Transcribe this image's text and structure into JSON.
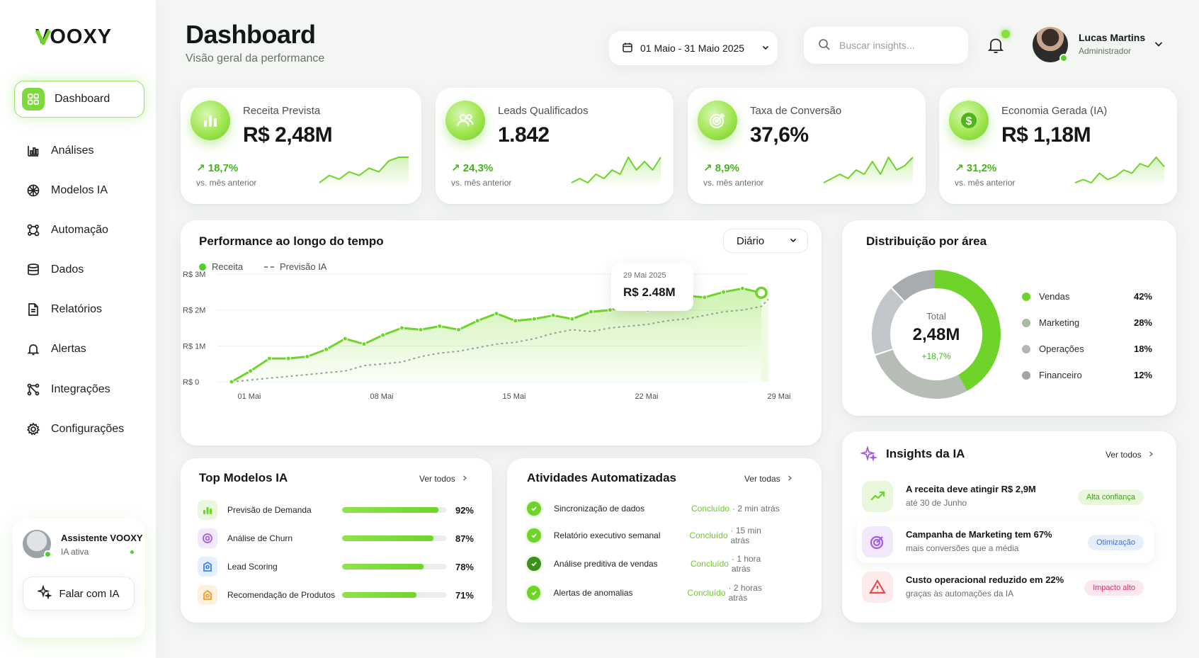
{
  "brand": {
    "logo": "VOOXY",
    "accent": "#6fd42a"
  },
  "sidebar": {
    "items": [
      {
        "label": "Dashboard",
        "icon": "grid-icon",
        "active": true
      },
      {
        "label": "Análises",
        "icon": "bar-chart-icon"
      },
      {
        "label": "Modelos IA",
        "icon": "ai-chip-icon"
      },
      {
        "label": "Automação",
        "icon": "automation-icon"
      },
      {
        "label": "Dados",
        "icon": "database-icon"
      },
      {
        "label": "Relatórios",
        "icon": "report-icon"
      },
      {
        "label": "Alertas",
        "icon": "bell-icon"
      },
      {
        "label": "Integrações",
        "icon": "integration-icon"
      },
      {
        "label": "Configurações",
        "icon": "gear-icon"
      }
    ],
    "assistant": {
      "name": "Assistente VOOXY",
      "status": "IA ativa",
      "button": "Falar com IA"
    }
  },
  "header": {
    "title": "Dashboard",
    "subtitle": "Visão geral da performance",
    "date_range": "01 Maio - 31 Maio 2025",
    "search_placeholder": "Buscar insights...",
    "user": {
      "name": "Lucas Martins",
      "role": "Administrador"
    }
  },
  "kpis": [
    {
      "label": "Receita Prevista",
      "value": "R$ 2,48M",
      "delta": "↗ 18,7%",
      "compare": "vs. mês anterior",
      "icon": "bar-chart-icon",
      "spark": [
        3,
        5,
        4,
        6,
        5,
        7,
        6,
        9,
        10,
        10
      ]
    },
    {
      "label": "Leads Qualificados",
      "value": "1.842",
      "delta": "↗ 24,3%",
      "compare": "vs. mês anterior",
      "icon": "users-icon",
      "spark": [
        3,
        4,
        3,
        5,
        4,
        6,
        5,
        9,
        6,
        8,
        6,
        9
      ]
    },
    {
      "label": "Taxa de Conversão",
      "value": "37,6%",
      "delta": "↗ 8,9%",
      "compare": "vs. mês anterior",
      "icon": "target-icon",
      "spark": [
        3,
        4,
        5,
        4,
        6,
        5,
        8,
        5,
        9,
        6,
        7,
        9
      ]
    },
    {
      "label": "Economia Gerada (IA)",
      "value": "R$ 1,18M",
      "delta": "↗ 31,2%",
      "compare": "vs. mês anterior",
      "icon": "dollar-icon",
      "spark": [
        3,
        4,
        3,
        6,
        4,
        5,
        7,
        6,
        9,
        8,
        11,
        8
      ]
    }
  ],
  "performance": {
    "title": "Performance ao longo do tempo",
    "period": "Diário",
    "legend": [
      "Receita",
      "Previsão IA"
    ],
    "tooltip": {
      "date": "29 Mai 2025",
      "value": "R$ 2.48M"
    }
  },
  "chart_data": {
    "type": "line",
    "x": [
      1,
      2,
      3,
      4,
      5,
      6,
      7,
      8,
      9,
      10,
      11,
      12,
      13,
      14,
      15,
      16,
      17,
      18,
      19,
      20,
      21,
      22,
      23,
      24,
      25,
      26,
      27,
      28,
      29
    ],
    "xticks": [
      "01 Mai",
      "08 Mai",
      "15 Mai",
      "22 Mai",
      "29 Mai"
    ],
    "yticks": [
      "R$ 0",
      "R$ 1M",
      "R$ 2M",
      "R$ 3M"
    ],
    "ylim": [
      0,
      3
    ],
    "series": [
      {
        "name": "Receita",
        "color": "#6fd42a",
        "values": [
          0.0,
          0.3,
          0.65,
          0.65,
          0.7,
          0.9,
          1.2,
          1.05,
          1.3,
          1.5,
          1.45,
          1.55,
          1.45,
          1.7,
          1.9,
          1.7,
          1.75,
          1.85,
          1.75,
          1.95,
          2.0,
          2.1,
          2.0,
          2.3,
          2.4,
          2.35,
          2.5,
          2.6,
          2.48
        ]
      },
      {
        "name": "Previsão IA",
        "color": "#9a9e9a",
        "values": [
          0.0,
          0.05,
          0.1,
          0.15,
          0.2,
          0.25,
          0.3,
          0.45,
          0.5,
          0.55,
          0.7,
          0.8,
          0.85,
          0.95,
          1.05,
          1.1,
          1.2,
          1.35,
          1.45,
          1.4,
          1.5,
          1.55,
          1.6,
          1.7,
          1.75,
          1.85,
          1.95,
          2.0,
          2.1
        ]
      }
    ]
  },
  "distribution": {
    "title": "Distribuição por área",
    "total_label": "Total",
    "total_value": "2,48M",
    "total_delta": "+18,7%",
    "items": [
      {
        "name": "Vendas",
        "pct": "42%",
        "color": "#6fd42a",
        "value": 42
      },
      {
        "name": "Marketing",
        "pct": "28%",
        "color": "#a9bca3",
        "value": 28
      },
      {
        "name": "Operações",
        "pct": "18%",
        "color": "#b1b6bb",
        "value": 18
      },
      {
        "name": "Financeiro",
        "pct": "12%",
        "color": "#a0a5aa",
        "value": 12
      }
    ]
  },
  "top_models": {
    "title": "Top Modelos IA",
    "link": "Ver todos",
    "items": [
      {
        "name": "Previsão de Demanda",
        "pct": "92%",
        "value": 0.92,
        "icon": "bar-chart-icon",
        "color": "#6fd42a",
        "bg": "#e9f8dc"
      },
      {
        "name": "Análise de Churn",
        "pct": "87%",
        "value": 0.87,
        "icon": "target-icon",
        "color": "#a45de0",
        "bg": "#f2e8fb"
      },
      {
        "name": "Lead Scoring",
        "pct": "78%",
        "value": 0.78,
        "icon": "lead-icon",
        "color": "#3b82f6",
        "bg": "#e6effe"
      },
      {
        "name": "Recomendação de Produtos",
        "pct": "71%",
        "value": 0.71,
        "icon": "product-icon",
        "color": "#f59a23",
        "bg": "#fdf0df"
      }
    ]
  },
  "activities": {
    "title": "Atividades Automatizadas",
    "link": "Ver todas",
    "items": [
      {
        "name": "Sincronização de dados",
        "status": "Concluído",
        "time": "· 2 min atrás"
      },
      {
        "name": "Relatório executivo semanal",
        "status": "Concluído",
        "time": "· 15 min atrás"
      },
      {
        "name": "Análise preditiva de vendas",
        "status": "Concluído",
        "time": "· 1 hora atrás"
      },
      {
        "name": "Alertas de anomalias",
        "status": "Concluído",
        "time": "· 2 horas atrás"
      }
    ]
  },
  "insights": {
    "title": "Insights da IA",
    "link": "Ver todos",
    "items": [
      {
        "title": "A receita deve atingir R$ 2,9M",
        "sub": "até 30 de Junho",
        "badge": "Alta confiança",
        "badge_color": "#3f9f1a",
        "badge_bg": "#e9f8dc",
        "icon": "trend-up-icon",
        "icon_color": "#6fd42a",
        "icon_bg": "#e9f8dc"
      },
      {
        "title": "Campanha de Marketing tem 67%",
        "sub": "mais conversões que a média",
        "badge": "Otimização",
        "badge_color": "#3b6fe0",
        "badge_bg": "#e7eefd",
        "icon": "target-icon",
        "icon_color": "#a45de0",
        "icon_bg": "#f2e8fb"
      },
      {
        "title": "Custo operacional reduzido em 22%",
        "sub": "graças às automações da IA",
        "badge": "Impacto alto",
        "badge_color": "#d6336c",
        "badge_bg": "#fde7ef",
        "icon": "alert-icon",
        "icon_color": "#e5484d",
        "icon_bg": "#fdeaea"
      }
    ]
  }
}
